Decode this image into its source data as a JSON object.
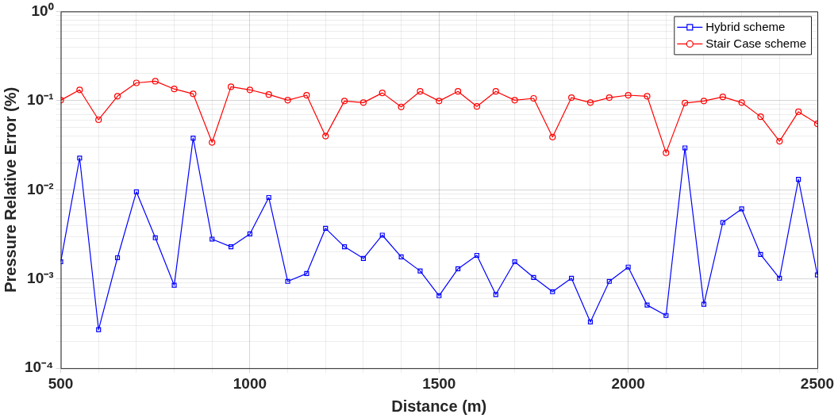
{
  "chart_data": {
    "type": "line",
    "xlabel": "Distance (m)",
    "ylabel": "Pressure Relative Error (%)",
    "log": "y",
    "grid": true,
    "legend": "top right",
    "line_style": "solid",
    "x": [
      500,
      550,
      600,
      650,
      700,
      750,
      800,
      850,
      900,
      950,
      1000,
      1050,
      1100,
      1150,
      1200,
      1250,
      1300,
      1350,
      1400,
      1450,
      1500,
      1550,
      1600,
      1650,
      1700,
      1750,
      1800,
      1850,
      1900,
      1950,
      2000,
      2050,
      2100,
      2150,
      2200,
      2250,
      2300,
      2350,
      2400,
      2450,
      2500
    ],
    "xlim": [
      500,
      2500
    ],
    "xticks": [
      500,
      {
        "value": 600,
        "label": null
      },
      {
        "value": 700,
        "label": null
      },
      {
        "value": 800,
        "label": null
      },
      {
        "value": 900,
        "label": null
      },
      1000,
      {
        "value": 1100,
        "label": null
      },
      {
        "value": 1200,
        "label": null
      },
      {
        "value": 1300,
        "label": null
      },
      {
        "value": 1400,
        "label": null
      },
      1500,
      {
        "value": 1600,
        "label": null
      },
      {
        "value": 1700,
        "label": null
      },
      {
        "value": 1800,
        "label": null
      },
      {
        "value": 1900,
        "label": null
      },
      2000,
      {
        "value": 2100,
        "label": null
      },
      {
        "value": 2200,
        "label": null
      },
      {
        "value": 2300,
        "label": null
      },
      {
        "value": 2400,
        "label": null
      },
      2500
    ],
    "ylim": [
      0.0001,
      1
    ],
    "yticks": [
      {
        "value": 0.0001,
        "label": "10⁻⁴"
      },
      {
        "value": 0.0002,
        "label": null
      },
      {
        "value": 0.0003,
        "label": null
      },
      {
        "value": 0.0004,
        "label": null
      },
      {
        "value": 0.0005,
        "label": null
      },
      {
        "value": 0.0006,
        "label": null
      },
      {
        "value": 0.0007,
        "label": null
      },
      {
        "value": 0.0008,
        "label": null
      },
      {
        "value": 0.0009,
        "label": null
      },
      {
        "value": 0.001,
        "label": "10⁻³"
      },
      {
        "value": 0.002,
        "label": null
      },
      {
        "value": 0.003,
        "label": null
      },
      {
        "value": 0.004,
        "label": null
      },
      {
        "value": 0.005,
        "label": null
      },
      {
        "value": 0.006,
        "label": null
      },
      {
        "value": 0.007,
        "label": null
      },
      {
        "value": 0.008,
        "label": null
      },
      {
        "value": 0.009,
        "label": null
      },
      {
        "value": 0.01,
        "label": "10⁻²"
      },
      {
        "value": 0.02,
        "label": null
      },
      {
        "value": 0.03,
        "label": null
      },
      {
        "value": 0.04,
        "label": null
      },
      {
        "value": 0.05,
        "label": null
      },
      {
        "value": 0.06,
        "label": null
      },
      {
        "value": 0.07,
        "label": null
      },
      {
        "value": 0.08,
        "label": null
      },
      {
        "value": 0.09,
        "label": null
      },
      {
        "value": 0.1,
        "label": "10⁻¹"
      },
      {
        "value": 0.2,
        "label": null
      },
      {
        "value": 0.3,
        "label": null
      },
      {
        "value": 0.4,
        "label": null
      },
      {
        "value": 0.5,
        "label": null
      },
      {
        "value": 0.6,
        "label": null
      },
      {
        "value": 0.7,
        "label": null
      },
      {
        "value": 0.8,
        "label": null
      },
      {
        "value": 0.9,
        "label": null
      },
      {
        "value": 1,
        "label": "10⁰"
      }
    ],
    "series": [
      {
        "name": "Hybrid scheme",
        "color": "#0000ff",
        "marker": "square",
        "values": [
          0.00156,
          0.0227,
          0.00027,
          0.00173,
          0.0095,
          0.0029,
          0.00085,
          0.038,
          0.0028,
          0.0023,
          0.0032,
          0.0082,
          0.00094,
          0.00115,
          0.0037,
          0.0023,
          0.0017,
          0.0031,
          0.00177,
          0.00123,
          0.00065,
          0.0013,
          0.00184,
          0.00067,
          0.00156,
          0.00104,
          0.00072,
          0.00102,
          0.00033,
          0.00094,
          0.00136,
          0.00051,
          0.00039,
          0.0295,
          0.00052,
          0.0043,
          0.0061,
          0.00188,
          0.00102,
          0.0131,
          0.00111
        ]
      },
      {
        "name": "Stair Case scheme",
        "color": "#ff0000",
        "marker": "circle",
        "values": [
          0.101,
          0.132,
          0.061,
          0.112,
          0.158,
          0.165,
          0.135,
          0.119,
          0.034,
          0.143,
          0.132,
          0.117,
          0.101,
          0.115,
          0.04,
          0.099,
          0.095,
          0.122,
          0.085,
          0.127,
          0.099,
          0.127,
          0.086,
          0.127,
          0.101,
          0.106,
          0.039,
          0.108,
          0.095,
          0.108,
          0.115,
          0.112,
          0.026,
          0.094,
          0.099,
          0.11,
          0.095,
          0.066,
          0.035,
          0.075,
          0.055
        ]
      }
    ]
  }
}
